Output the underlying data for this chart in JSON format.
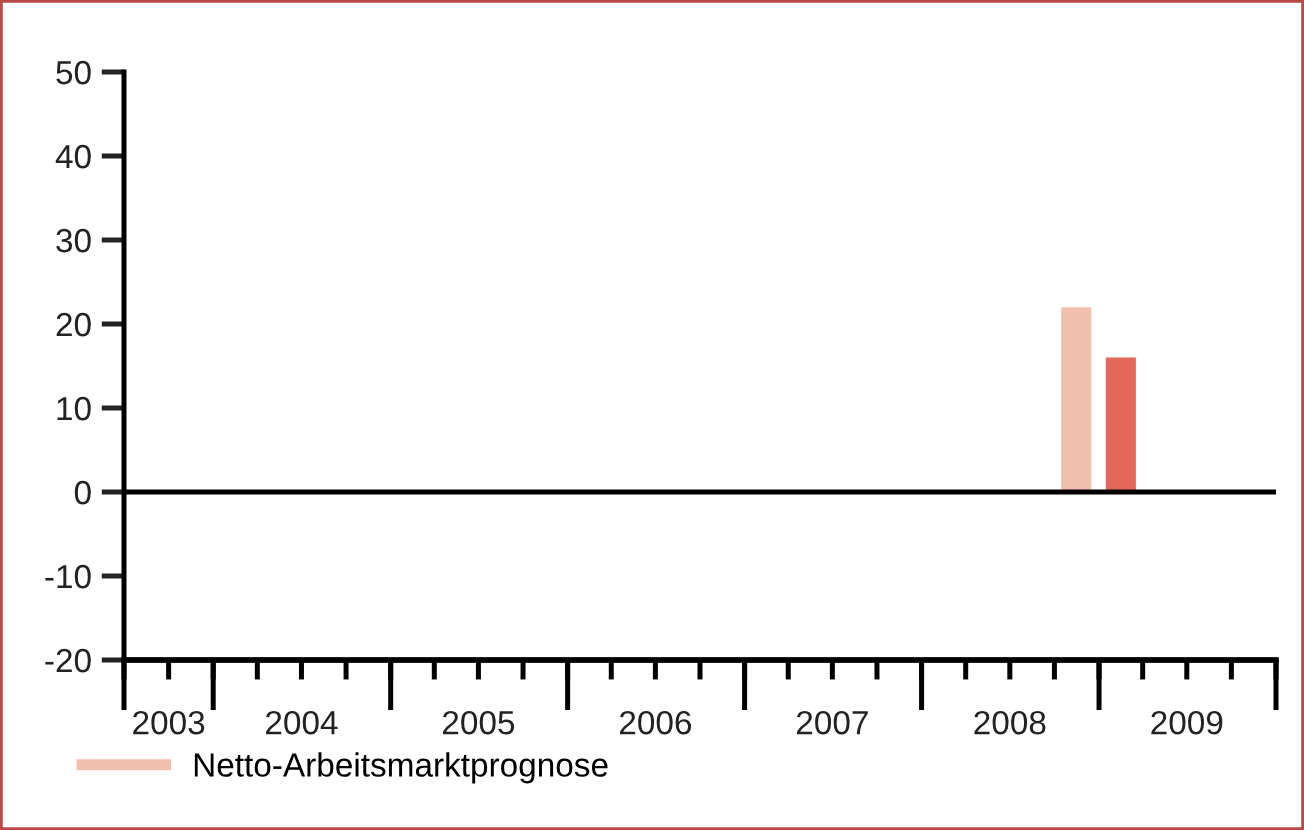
{
  "chart_data": {
    "type": "bar",
    "series": [
      {
        "name": "Netto-Arbeitsmarktprognose",
        "color": "#f4c0ae",
        "x": [
          "2008-11-15"
        ],
        "values": [
          22
        ]
      },
      {
        "color": "#e5695a",
        "x": [
          "2009-02-15"
        ],
        "values": [
          16
        ]
      }
    ],
    "ylim": [
      -20,
      50
    ],
    "yticks": [
      -20,
      -10,
      0,
      10,
      20,
      30,
      40,
      50
    ],
    "xlim": [
      "2003-07-01",
      "2010-01-01"
    ],
    "xticks": [
      {
        "value": "2003-10-01",
        "label": "2003"
      },
      {
        "value": "2004-07-01",
        "label": "2004"
      },
      {
        "value": "2005-07-01",
        "label": "2005"
      },
      {
        "value": "2006-07-01",
        "label": "2006"
      },
      {
        "value": "2007-07-01",
        "label": "2007"
      },
      {
        "value": "2008-07-01",
        "label": "2008"
      },
      {
        "value": "2009-07-01",
        "label": "2009"
      },
      {
        "value": "2003-07-01",
        "label": null
      },
      {
        "value": "2003-10-01",
        "label": null
      },
      {
        "value": "2004-01-01",
        "label": null
      },
      {
        "value": "2004-04-01",
        "label": null
      },
      {
        "value": "2004-07-01",
        "label": null
      },
      {
        "value": "2004-10-01",
        "label": null
      },
      {
        "value": "2005-01-01",
        "label": null
      },
      {
        "value": "2005-04-01",
        "label": null
      },
      {
        "value": "2005-07-01",
        "label": null
      },
      {
        "value": "2005-10-01",
        "label": null
      },
      {
        "value": "2006-01-01",
        "label": null
      },
      {
        "value": "2006-04-01",
        "label": null
      },
      {
        "value": "2006-07-01",
        "label": null
      },
      {
        "value": "2006-10-01",
        "label": null
      },
      {
        "value": "2007-01-01",
        "label": null
      },
      {
        "value": "2007-04-01",
        "label": null
      },
      {
        "value": "2007-07-01",
        "label": null
      },
      {
        "value": "2007-10-01",
        "label": null
      },
      {
        "value": "2008-01-01",
        "label": null
      },
      {
        "value": "2008-04-01",
        "label": null
      },
      {
        "value": "2008-07-01",
        "label": null
      },
      {
        "value": "2008-10-01",
        "label": null
      },
      {
        "value": "2009-01-01",
        "label": null
      },
      {
        "value": "2009-04-01",
        "label": null
      },
      {
        "value": "2009-07-01",
        "label": null
      },
      {
        "value": "2009-10-01",
        "label": null
      },
      {
        "value": "2010-01-01",
        "label": null
      }
    ],
    "ref_lines": [
      {
        "axis": "y",
        "value": 0,
        "color": "#000000"
      }
    ],
    "grid": false,
    "legend": "bottom left"
  }
}
